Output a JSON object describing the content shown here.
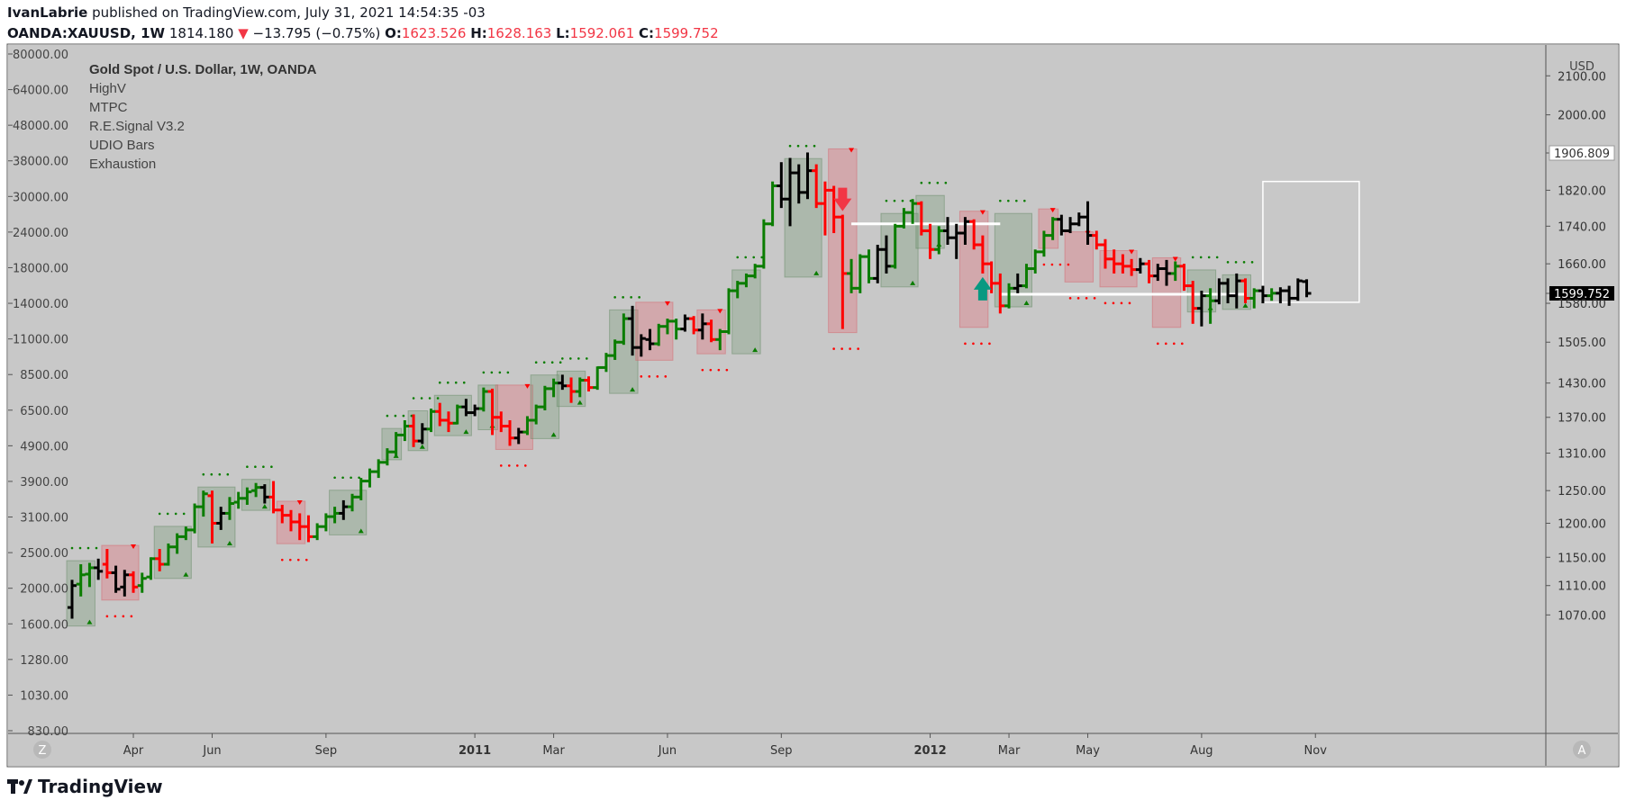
{
  "header": {
    "author": "IvanLabrie",
    "published_text": "published on TradingView.com, July 31, 2021 14:54:35 -03",
    "symbol": "OANDA:XAUUSD, 1W",
    "last": "1814.180",
    "change": "−13.795 (−0.75%)",
    "o_label": "O:",
    "o_value": "1623.526",
    "h_label": "H:",
    "h_value": "1628.163",
    "l_label": "L:",
    "l_value": "1592.061",
    "c_label": "C:",
    "c_value": "1599.752",
    "down_color": "#f23645"
  },
  "legend": {
    "title": "Gold Spot / U.S. Dollar, 1W, OANDA",
    "indicators": [
      "HighV",
      "MTPC",
      "R.E.Signal V3.2",
      "UDIO Bars",
      "Exhaustion"
    ]
  },
  "footer": {
    "brand": "TradingView"
  },
  "chart_data": {
    "type": "ohlc-bar",
    "symbol": "XAUUSD",
    "timeframe": "1W",
    "currency_label": "USD",
    "right_axis_ticks": [
      "2100.00",
      "2000.00",
      "1906.809",
      "1820.00",
      "1740.00",
      "1660.00",
      "1599.752",
      "1580.00",
      "1505.00",
      "1430.00",
      "1370.00",
      "1310.00",
      "1250.00",
      "1200.00",
      "1150.00",
      "1110.00",
      "1070.00"
    ],
    "right_axis_values": [
      2100,
      2000,
      1906.809,
      1820,
      1740,
      1660,
      1599.752,
      1580,
      1505,
      1430,
      1370,
      1310,
      1250,
      1200,
      1150,
      1110,
      1070
    ],
    "price_labels": [
      {
        "text": "1906.809",
        "value": 1906.809,
        "style": "outline"
      },
      {
        "text": "1599.752",
        "value": 1599.752,
        "style": "filled"
      }
    ],
    "left_axis_ticks": [
      "80000.00",
      "64000.00",
      "48000.00",
      "38000.00",
      "30000.00",
      "24000.00",
      "18000.00",
      "14000.00",
      "11000.00",
      "8500.00",
      "6500.00",
      "4900.00",
      "3900.00",
      "3100.00",
      "2500.00",
      "2000.00",
      "1600.00",
      "1280.00",
      "1030.00",
      "830.00"
    ],
    "x_axis_labels": [
      {
        "text": "Apr",
        "week": 7
      },
      {
        "text": "Jun",
        "week": 16
      },
      {
        "text": "Sep",
        "week": 29
      },
      {
        "text": "2011",
        "week": 46,
        "bold": true
      },
      {
        "text": "Mar",
        "week": 55
      },
      {
        "text": "Jun",
        "week": 68
      },
      {
        "text": "Sep",
        "week": 81
      },
      {
        "text": "2012",
        "week": 98,
        "bold": true
      },
      {
        "text": "Mar",
        "week": 107
      },
      {
        "text": "May",
        "week": 116
      },
      {
        "text": "Aug",
        "week": 129
      },
      {
        "text": "Nov",
        "week": 142
      }
    ],
    "axis_button_left": "Z",
    "axis_button_right": "A",
    "colors": {
      "up": "#0a7d00",
      "down": "#ff0000",
      "neutral": "#000000",
      "up_box": "rgba(110,150,110,0.30)",
      "down_box": "rgba(230,110,120,0.35)",
      "bg": "#c8c8c8",
      "signal_down": "#f23645",
      "signal_up": "#089981"
    },
    "bars": [
      [
        1080,
        1118,
        1065,
        1110,
        "n"
      ],
      [
        1112,
        1140,
        1095,
        1125,
        "u"
      ],
      [
        1126,
        1142,
        1108,
        1135,
        "u"
      ],
      [
        1135,
        1148,
        1118,
        1130,
        "n"
      ],
      [
        1140,
        1162,
        1120,
        1128,
        "d"
      ],
      [
        1128,
        1138,
        1100,
        1105,
        "n"
      ],
      [
        1108,
        1132,
        1095,
        1125,
        "n"
      ],
      [
        1125,
        1130,
        1100,
        1108,
        "d"
      ],
      [
        1110,
        1128,
        1100,
        1120,
        "u"
      ],
      [
        1122,
        1150,
        1118,
        1148,
        "u"
      ],
      [
        1148,
        1162,
        1130,
        1140,
        "d"
      ],
      [
        1140,
        1170,
        1138,
        1165,
        "u"
      ],
      [
        1165,
        1185,
        1155,
        1180,
        "u"
      ],
      [
        1180,
        1195,
        1175,
        1190,
        "u"
      ],
      [
        1190,
        1230,
        1185,
        1225,
        "u"
      ],
      [
        1225,
        1250,
        1210,
        1245,
        "u"
      ],
      [
        1242,
        1250,
        1170,
        1200,
        "d"
      ],
      [
        1200,
        1225,
        1190,
        1215,
        "n"
      ],
      [
        1215,
        1240,
        1205,
        1230,
        "u"
      ],
      [
        1232,
        1248,
        1222,
        1238,
        "u"
      ],
      [
        1238,
        1255,
        1228,
        1248,
        "u"
      ],
      [
        1250,
        1262,
        1240,
        1255,
        "u"
      ],
      [
        1255,
        1260,
        1230,
        1240,
        "n"
      ],
      [
        1240,
        1265,
        1215,
        1220,
        "d"
      ],
      [
        1220,
        1228,
        1200,
        1212,
        "d"
      ],
      [
        1212,
        1220,
        1188,
        1202,
        "d"
      ],
      [
        1202,
        1215,
        1175,
        1195,
        "d"
      ],
      [
        1195,
        1212,
        1172,
        1180,
        "d"
      ],
      [
        1180,
        1200,
        1175,
        1195,
        "u"
      ],
      [
        1195,
        1215,
        1188,
        1210,
        "u"
      ],
      [
        1210,
        1225,
        1200,
        1215,
        "u"
      ],
      [
        1215,
        1235,
        1205,
        1225,
        "n"
      ],
      [
        1225,
        1245,
        1218,
        1240,
        "u"
      ],
      [
        1240,
        1270,
        1235,
        1265,
        "u"
      ],
      [
        1265,
        1285,
        1255,
        1280,
        "u"
      ],
      [
        1280,
        1300,
        1270,
        1295,
        "u"
      ],
      [
        1295,
        1318,
        1290,
        1312,
        "u"
      ],
      [
        1312,
        1345,
        1305,
        1340,
        "u"
      ],
      [
        1340,
        1365,
        1330,
        1355,
        "u"
      ],
      [
        1355,
        1375,
        1320,
        1330,
        "d"
      ],
      [
        1330,
        1360,
        1325,
        1350,
        "n"
      ],
      [
        1350,
        1385,
        1345,
        1380,
        "u"
      ],
      [
        1380,
        1395,
        1355,
        1365,
        "d"
      ],
      [
        1365,
        1380,
        1345,
        1360,
        "d"
      ],
      [
        1360,
        1392,
        1358,
        1388,
        "u"
      ],
      [
        1388,
        1402,
        1372,
        1378,
        "n"
      ],
      [
        1378,
        1392,
        1372,
        1385,
        "n"
      ],
      [
        1385,
        1422,
        1380,
        1415,
        "u"
      ],
      [
        1415,
        1420,
        1340,
        1370,
        "d"
      ],
      [
        1370,
        1380,
        1345,
        1355,
        "d"
      ],
      [
        1355,
        1365,
        1322,
        1335,
        "d"
      ],
      [
        1335,
        1352,
        1325,
        1345,
        "n"
      ],
      [
        1345,
        1372,
        1340,
        1365,
        "u"
      ],
      [
        1365,
        1392,
        1358,
        1388,
        "u"
      ],
      [
        1388,
        1425,
        1382,
        1420,
        "u"
      ],
      [
        1420,
        1438,
        1405,
        1430,
        "u"
      ],
      [
        1430,
        1445,
        1418,
        1425,
        "n"
      ],
      [
        1425,
        1440,
        1395,
        1415,
        "d"
      ],
      [
        1415,
        1440,
        1405,
        1435,
        "u"
      ],
      [
        1435,
        1442,
        1415,
        1422,
        "d"
      ],
      [
        1422,
        1460,
        1418,
        1458,
        "u"
      ],
      [
        1458,
        1485,
        1450,
        1480,
        "u"
      ],
      [
        1480,
        1510,
        1472,
        1505,
        "u"
      ],
      [
        1505,
        1560,
        1500,
        1550,
        "u"
      ],
      [
        1550,
        1575,
        1480,
        1495,
        "n"
      ],
      [
        1495,
        1520,
        1478,
        1512,
        "n"
      ],
      [
        1510,
        1530,
        1490,
        1502,
        "n"
      ],
      [
        1502,
        1540,
        1498,
        1535,
        "u"
      ],
      [
        1535,
        1550,
        1520,
        1545,
        "u"
      ],
      [
        1545,
        1550,
        1510,
        1530,
        "u"
      ],
      [
        1530,
        1558,
        1525,
        1550,
        "n"
      ],
      [
        1550,
        1555,
        1520,
        1528,
        "d"
      ],
      [
        1528,
        1560,
        1510,
        1540,
        "n"
      ],
      [
        1540,
        1548,
        1505,
        1510,
        "d"
      ],
      [
        1510,
        1530,
        1490,
        1525,
        "u"
      ],
      [
        1525,
        1610,
        1520,
        1605,
        "u"
      ],
      [
        1605,
        1625,
        1590,
        1620,
        "u"
      ],
      [
        1620,
        1640,
        1612,
        1635,
        "u"
      ],
      [
        1635,
        1660,
        1630,
        1655,
        "u"
      ],
      [
        1655,
        1755,
        1650,
        1745,
        "u"
      ],
      [
        1745,
        1840,
        1740,
        1830,
        "u"
      ],
      [
        1830,
        1885,
        1780,
        1800,
        "n"
      ],
      [
        1800,
        1895,
        1740,
        1860,
        "n"
      ],
      [
        1860,
        1880,
        1790,
        1815,
        "n"
      ],
      [
        1815,
        1908,
        1800,
        1865,
        "n"
      ],
      [
        1865,
        1880,
        1780,
        1790,
        "d"
      ],
      [
        1790,
        1840,
        1720,
        1820,
        "d"
      ],
      [
        1820,
        1830,
        1725,
        1760,
        "d"
      ],
      [
        1760,
        1765,
        1530,
        1640,
        "d"
      ],
      [
        1640,
        1670,
        1600,
        1610,
        "u"
      ],
      [
        1610,
        1680,
        1600,
        1675,
        "u"
      ],
      [
        1675,
        1690,
        1620,
        1630,
        "u"
      ],
      [
        1630,
        1700,
        1620,
        1690,
        "n"
      ],
      [
        1690,
        1720,
        1640,
        1655,
        "n"
      ],
      [
        1655,
        1745,
        1650,
        1740,
        "u"
      ],
      [
        1740,
        1780,
        1735,
        1770,
        "u"
      ],
      [
        1770,
        1800,
        1745,
        1790,
        "u"
      ],
      [
        1790,
        1795,
        1720,
        1730,
        "d"
      ],
      [
        1730,
        1745,
        1670,
        1690,
        "d"
      ],
      [
        1690,
        1740,
        1680,
        1730,
        "u"
      ],
      [
        1730,
        1760,
        1700,
        1715,
        "n"
      ],
      [
        1715,
        1745,
        1670,
        1725,
        "n"
      ],
      [
        1725,
        1760,
        1700,
        1750,
        "n"
      ],
      [
        1750,
        1755,
        1690,
        1700,
        "d"
      ],
      [
        1700,
        1720,
        1640,
        1660,
        "d"
      ],
      [
        1660,
        1665,
        1600,
        1620,
        "d"
      ],
      [
        1620,
        1640,
        1560,
        1575,
        "d"
      ],
      [
        1575,
        1620,
        1570,
        1610,
        "u"
      ],
      [
        1610,
        1640,
        1600,
        1615,
        "n"
      ],
      [
        1615,
        1660,
        1610,
        1650,
        "u"
      ],
      [
        1650,
        1690,
        1640,
        1685,
        "u"
      ],
      [
        1685,
        1730,
        1675,
        1720,
        "u"
      ],
      [
        1720,
        1760,
        1710,
        1755,
        "u"
      ],
      [
        1755,
        1765,
        1720,
        1730,
        "n"
      ],
      [
        1730,
        1760,
        1725,
        1745,
        "n"
      ],
      [
        1745,
        1770,
        1740,
        1760,
        "n"
      ],
      [
        1760,
        1795,
        1700,
        1720,
        "n"
      ],
      [
        1720,
        1730,
        1690,
        1700,
        "d"
      ],
      [
        1700,
        1712,
        1650,
        1670,
        "d"
      ],
      [
        1670,
        1690,
        1640,
        1660,
        "d"
      ],
      [
        1660,
        1680,
        1640,
        1655,
        "d"
      ],
      [
        1655,
        1670,
        1635,
        1648,
        "d"
      ],
      [
        1648,
        1672,
        1640,
        1660,
        "n"
      ],
      [
        1660,
        1668,
        1620,
        1635,
        "d"
      ],
      [
        1635,
        1660,
        1625,
        1650,
        "n"
      ],
      [
        1650,
        1668,
        1615,
        1640,
        "n"
      ],
      [
        1640,
        1665,
        1625,
        1655,
        "u"
      ],
      [
        1655,
        1660,
        1605,
        1615,
        "d"
      ],
      [
        1615,
        1625,
        1540,
        1570,
        "d"
      ],
      [
        1570,
        1605,
        1535,
        1595,
        "n"
      ],
      [
        1595,
        1610,
        1540,
        1585,
        "u"
      ],
      [
        1585,
        1630,
        1578,
        1620,
        "n"
      ],
      [
        1620,
        1630,
        1580,
        1595,
        "n"
      ],
      [
        1595,
        1640,
        1570,
        1625,
        "n"
      ],
      [
        1625,
        1630,
        1580,
        1590,
        "d"
      ],
      [
        1590,
        1610,
        1570,
        1605,
        "u"
      ],
      [
        1605,
        1615,
        1580,
        1595,
        "n"
      ],
      [
        1595,
        1610,
        1585,
        1600,
        "u"
      ],
      [
        1600,
        1612,
        1580,
        1605,
        "n"
      ],
      [
        1605,
        1615,
        1575,
        1590,
        "n"
      ],
      [
        1590,
        1630,
        1585,
        1625,
        "n"
      ],
      [
        1623.526,
        1628.163,
        1592.061,
        1599.752,
        "n"
      ]
    ],
    "boxes": [
      {
        "from": 0,
        "to": 2,
        "low": 1060,
        "high": 1140,
        "kind": "up"
      },
      {
        "from": 4,
        "to": 7,
        "low": 1095,
        "high": 1162,
        "kind": "down"
      },
      {
        "from": 10,
        "to": 13,
        "low": 1125,
        "high": 1190,
        "kind": "up"
      },
      {
        "from": 15,
        "to": 18,
        "low": 1170,
        "high": 1250,
        "kind": "up"
      },
      {
        "from": 20,
        "to": 22,
        "low": 1225,
        "high": 1262,
        "kind": "up"
      },
      {
        "from": 24,
        "to": 26,
        "low": 1175,
        "high": 1228,
        "kind": "down"
      },
      {
        "from": 30,
        "to": 33,
        "low": 1188,
        "high": 1245,
        "kind": "up"
      },
      {
        "from": 36,
        "to": 37,
        "low": 1305,
        "high": 1345,
        "kind": "up"
      },
      {
        "from": 39,
        "to": 40,
        "low": 1320,
        "high": 1375,
        "kind": "up"
      },
      {
        "from": 42,
        "to": 45,
        "low": 1345,
        "high": 1402,
        "kind": "up"
      },
      {
        "from": 47,
        "to": 48,
        "low": 1355,
        "high": 1420,
        "kind": "up"
      },
      {
        "from": 49,
        "to": 52,
        "low": 1322,
        "high": 1420,
        "kind": "down"
      },
      {
        "from": 53,
        "to": 55,
        "low": 1340,
        "high": 1438,
        "kind": "up"
      },
      {
        "from": 56,
        "to": 58,
        "low": 1395,
        "high": 1445,
        "kind": "up"
      },
      {
        "from": 62,
        "to": 64,
        "low": 1418,
        "high": 1560,
        "kind": "up"
      },
      {
        "from": 65,
        "to": 68,
        "low": 1478,
        "high": 1575,
        "kind": "down"
      },
      {
        "from": 72,
        "to": 74,
        "low": 1490,
        "high": 1560,
        "kind": "down"
      },
      {
        "from": 76,
        "to": 78,
        "low": 1490,
        "high": 1640,
        "kind": "up"
      },
      {
        "from": 82,
        "to": 85,
        "low": 1640,
        "high": 1885,
        "kind": "up"
      },
      {
        "from": 87,
        "to": 89,
        "low": 1530,
        "high": 1908,
        "kind": "down"
      },
      {
        "from": 93,
        "to": 96,
        "low": 1620,
        "high": 1760,
        "kind": "up"
      },
      {
        "from": 97,
        "to": 99,
        "low": 1700,
        "high": 1800,
        "kind": "up"
      },
      {
        "from": 102,
        "to": 104,
        "low": 1540,
        "high": 1765,
        "kind": "down"
      },
      {
        "from": 106,
        "to": 109,
        "low": 1580,
        "high": 1760,
        "kind": "up"
      },
      {
        "from": 111,
        "to": 112,
        "low": 1700,
        "high": 1770,
        "kind": "down"
      },
      {
        "from": 114,
        "to": 116,
        "low": 1630,
        "high": 1720,
        "kind": "down"
      },
      {
        "from": 118,
        "to": 121,
        "low": 1620,
        "high": 1680,
        "kind": "down"
      },
      {
        "from": 124,
        "to": 126,
        "low": 1540,
        "high": 1665,
        "kind": "down"
      },
      {
        "from": 128,
        "to": 130,
        "low": 1570,
        "high": 1640,
        "kind": "up"
      },
      {
        "from": 132,
        "to": 134,
        "low": 1575,
        "high": 1630,
        "kind": "up"
      }
    ],
    "signal_arrows": [
      {
        "bar": 88,
        "dir": "down"
      },
      {
        "bar": 104,
        "dir": "up"
      }
    ],
    "drawn_rect": {
      "from": 136,
      "to": 147,
      "low": 1582,
      "high": 1840
    },
    "drawn_lines": [
      {
        "from": 89,
        "to": 106,
        "value": 1745
      },
      {
        "from": 106,
        "to": 134,
        "value": 1598
      }
    ]
  }
}
